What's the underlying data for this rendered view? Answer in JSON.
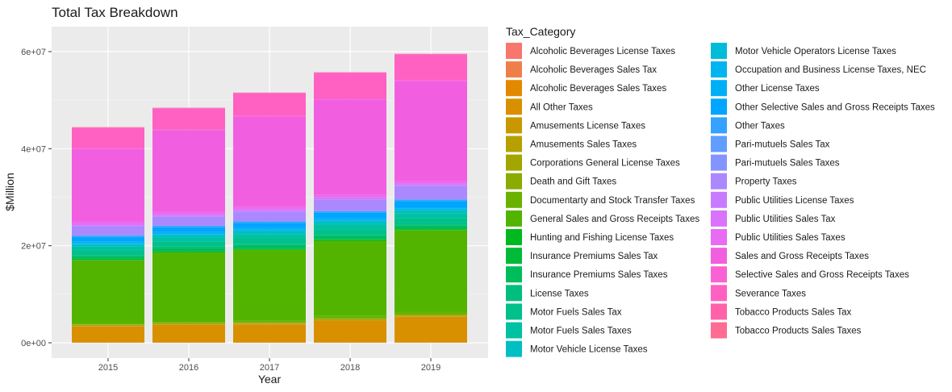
{
  "chart_data": {
    "type": "bar",
    "stacked": true,
    "title": "Total Tax Breakdown",
    "xlabel": "Year",
    "ylabel": "$Million",
    "categories": [
      "2015",
      "2016",
      "2017",
      "2018",
      "2019"
    ],
    "ylim": [
      0,
      63000000
    ],
    "yticks": [
      0,
      20000000,
      40000000,
      60000000
    ],
    "ytick_labels": [
      "0e+00",
      "2e+07",
      "4e+07",
      "6e+07"
    ],
    "grid": true,
    "legend_position": "right",
    "legend_title": "Tax_Category",
    "series": [
      {
        "name": "Alcoholic Beverages License Taxes",
        "color": "#F8766D",
        "values": [
          8000,
          9000,
          9000,
          9000,
          10000
        ]
      },
      {
        "name": "Alcoholic Beverages Sales Tax",
        "color": "#EF7F49",
        "values": [
          40000,
          40000,
          40000,
          40000,
          40000
        ]
      },
      {
        "name": "Alcoholic Beverages Sales Taxes",
        "color": "#E38900",
        "values": [
          30000,
          30000,
          30000,
          30000,
          30000
        ]
      },
      {
        "name": "All Other Taxes",
        "color": "#D89000",
        "values": [
          3300000,
          3600000,
          3700000,
          4500000,
          5300000
        ]
      },
      {
        "name": "Amusements License Taxes",
        "color": "#C99800",
        "values": [
          60000,
          60000,
          70000,
          70000,
          70000
        ]
      },
      {
        "name": "Amusements Sales Taxes",
        "color": "#B5A000",
        "values": [
          60000,
          60000,
          70000,
          70000,
          70000
        ]
      },
      {
        "name": "Corporations General License Taxes",
        "color": "#A3A500",
        "values": [
          200000,
          200000,
          200000,
          200000,
          200000
        ]
      },
      {
        "name": "Death and Gift Taxes",
        "color": "#8AAB00",
        "values": [
          100000,
          100000,
          100000,
          100000,
          100000
        ]
      },
      {
        "name": "Documentarty and Stock Transfer Taxes",
        "color": "#6BB100",
        "values": [
          200000,
          200000,
          300000,
          500000,
          500000
        ]
      },
      {
        "name": "General Sales and Gross Receipts Taxes",
        "color": "#53B400",
        "values": [
          13000000,
          14300000,
          14600000,
          15500000,
          16900000
        ]
      },
      {
        "name": "Hunting and Fishing License Taxes",
        "color": "#00B81F",
        "values": [
          100000,
          100000,
          100000,
          100000,
          100000
        ]
      },
      {
        "name": "Insurance Premiums Sales Tax",
        "color": "#00BA38",
        "values": [
          200000,
          200000,
          200000,
          200000,
          200000
        ]
      },
      {
        "name": "Insurance Premiums Sales Taxes",
        "color": "#00BD5C",
        "values": [
          600000,
          700000,
          700000,
          700000,
          700000
        ]
      },
      {
        "name": "License Taxes",
        "color": "#00BF7D",
        "values": [
          200000,
          200000,
          200000,
          200000,
          200000
        ]
      },
      {
        "name": "Motor Fuels Sales Tax",
        "color": "#00C08B",
        "values": [
          1000000,
          1100000,
          1200000,
          1200000,
          1200000
        ]
      },
      {
        "name": "Motor Fuels Sales Taxes",
        "color": "#00C1A3",
        "values": [
          700000,
          800000,
          900000,
          1000000,
          1100000
        ]
      },
      {
        "name": "Motor Vehicle License Taxes",
        "color": "#00BFC4",
        "values": [
          500000,
          500000,
          600000,
          600000,
          600000
        ]
      },
      {
        "name": "Motor Vehicle Operators License Taxes",
        "color": "#00BCD8",
        "values": [
          100000,
          100000,
          100000,
          100000,
          100000
        ]
      },
      {
        "name": "Occupation and Business License Taxes, NEC",
        "color": "#00B4EF",
        "values": [
          300000,
          300000,
          300000,
          300000,
          300000
        ]
      },
      {
        "name": "Other License Taxes",
        "color": "#00B0F6",
        "values": [
          200000,
          200000,
          200000,
          200000,
          200000
        ]
      },
      {
        "name": "Other Selective Sales and Gross Receipts Taxes",
        "color": "#00A5FF",
        "values": [
          900000,
          1000000,
          1100000,
          1200000,
          1300000
        ]
      },
      {
        "name": "Other Taxes",
        "color": "#35A2FF",
        "values": [
          300000,
          300000,
          300000,
          300000,
          300000
        ]
      },
      {
        "name": "Pari-mutuels Sales Tax",
        "color": "#619CFF",
        "values": [
          20000,
          20000,
          20000,
          20000,
          20000
        ]
      },
      {
        "name": "Pari-mutuels Sales Taxes",
        "color": "#8494FF",
        "values": [
          20000,
          20000,
          20000,
          20000,
          20000
        ]
      },
      {
        "name": "Property Taxes",
        "color": "#AC88FF",
        "values": [
          1900000,
          1900000,
          2000000,
          2400000,
          2800000
        ]
      },
      {
        "name": "Public Utilities License Taxes",
        "color": "#C77CFF",
        "values": [
          100000,
          100000,
          100000,
          100000,
          100000
        ]
      },
      {
        "name": "Public Utilities Sales Tax",
        "color": "#DB72FB",
        "values": [
          300000,
          300000,
          300000,
          300000,
          300000
        ]
      },
      {
        "name": "Public Utilities Sales Taxes",
        "color": "#E76BF3",
        "values": [
          500000,
          500000,
          500000,
          500000,
          500000
        ]
      },
      {
        "name": "Sales and Gross Receipts Taxes",
        "color": "#F15FE0",
        "values": [
          15000000,
          16800000,
          18600000,
          19700000,
          20700000
        ]
      },
      {
        "name": "Selective Sales and Gross Receipts Taxes",
        "color": "#FA62D4",
        "values": [
          200000,
          200000,
          200000,
          200000,
          200000
        ]
      },
      {
        "name": "Severance Taxes",
        "color": "#FF61C3",
        "values": [
          4200000,
          4400000,
          4700000,
          5300000,
          5300000
        ]
      },
      {
        "name": "Tobacco Products Sales Tax",
        "color": "#FF62A9",
        "values": [
          50000,
          50000,
          50000,
          50000,
          50000
        ]
      },
      {
        "name": "Tobacco Products Sales Taxes",
        "color": "#FF6C91",
        "values": [
          50000,
          50000,
          50000,
          50000,
          50000
        ]
      }
    ]
  }
}
